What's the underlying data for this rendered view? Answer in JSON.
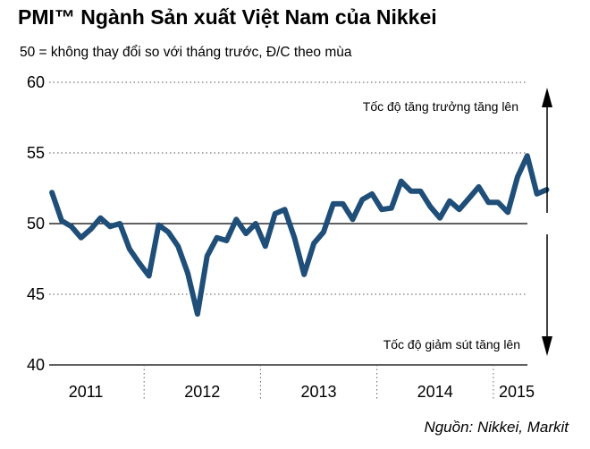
{
  "chart_data": {
    "type": "line",
    "title": "PMI™ Ngành Sản xuất Việt Nam của Nikkei",
    "subtitle": "50 = không thay đổi so với tháng trước, Đ/C theo mùa",
    "source": "Nguồn: Nikkei, Markit",
    "ylim": [
      40,
      60
    ],
    "yticks": [
      "60",
      "55",
      "50",
      "45",
      "40"
    ],
    "ytick_values": [
      60,
      55,
      50,
      45,
      40
    ],
    "xtick_labels": [
      "2011",
      "2012",
      "2013",
      "2014",
      "2015"
    ],
    "grid": true,
    "annotations": {
      "up": "Tốc độ tăng trưởng tăng lên",
      "down": "Tốc độ giảm sút tăng lên"
    },
    "series": [
      {
        "color": "#1f4e79",
        "start": "2011-03",
        "values": [
          52.2,
          50.2,
          49.8,
          49.0,
          49.6,
          50.4,
          49.8,
          50.0,
          48.2,
          47.2,
          46.3,
          49.9,
          49.4,
          48.4,
          46.5,
          43.6,
          47.7,
          49.0,
          48.8,
          50.3,
          49.3,
          50.0,
          48.4,
          50.7,
          51.0,
          49.0,
          46.4,
          48.6,
          49.4,
          51.4,
          51.4,
          50.3,
          51.7,
          52.1,
          51.0,
          51.1,
          53.0,
          52.3,
          52.3,
          51.2,
          50.4,
          51.6,
          51.0,
          51.8,
          52.6,
          51.5,
          51.5,
          50.8,
          53.3,
          54.8,
          52.1,
          52.4
        ]
      }
    ]
  }
}
